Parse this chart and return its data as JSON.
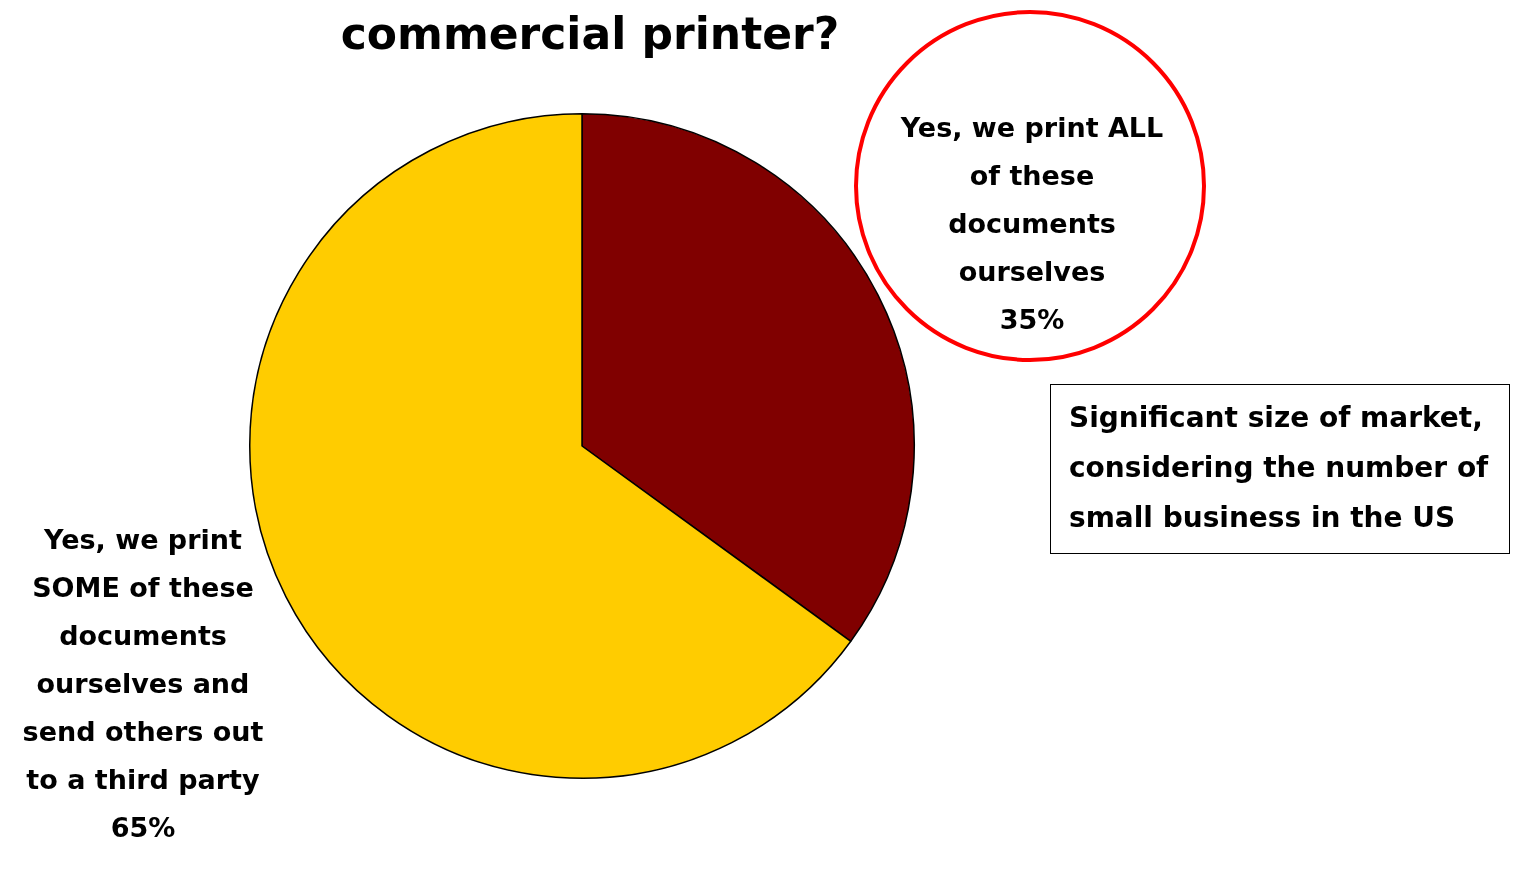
{
  "chart_data": {
    "type": "pie",
    "title": "commercial printer?",
    "categories": [
      "Yes, we print ALL of these documents ourselves",
      "Yes, we print SOME of these documents ourselves and send others out to a third party"
    ],
    "values": [
      35,
      65
    ],
    "colors": [
      "#800000",
      "#ffcc00"
    ],
    "value_labels": [
      "35%",
      "65%"
    ],
    "legend": false,
    "annotations": [
      "Significant size of market, considering the number of small business in the US"
    ]
  }
}
